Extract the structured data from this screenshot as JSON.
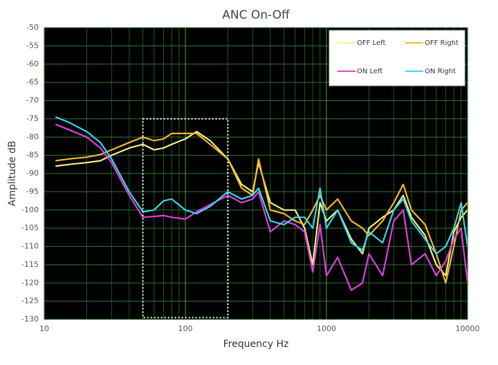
{
  "chart_data": {
    "type": "line",
    "title": "ANC On-Off",
    "x_label": "Frequency Hz",
    "y_label": "Amplitude dB",
    "x": [
      12,
      15,
      20,
      25,
      30,
      40,
      50,
      60,
      70,
      80,
      100,
      120,
      150,
      200,
      250,
      300,
      330,
      400,
      500,
      600,
      700,
      800,
      900,
      1000,
      1200,
      1500,
      1800,
      2000,
      2500,
      3000,
      3500,
      4000,
      5000,
      6000,
      7000,
      8000,
      9000,
      10000
    ],
    "series": [
      {
        "name": "OFF Left",
        "color": "#f5f08a",
        "values": [
          -88,
          -87.5,
          -87,
          -86.5,
          -85,
          -83,
          -82,
          -83.5,
          -83,
          -82,
          -80.5,
          -78.5,
          -81,
          -86,
          -93,
          -95,
          -87,
          -98,
          -100,
          -100,
          -105,
          -115,
          -98,
          -103,
          -100,
          -108,
          -112,
          -105,
          -102,
          -100,
          -96,
          -102,
          -107,
          -115,
          -118,
          -106,
          -102,
          -100
        ]
      },
      {
        "name": "OFF Right",
        "color": "#f5b82e",
        "values": [
          -86.5,
          -86,
          -85.5,
          -84.8,
          -83.5,
          -81.5,
          -80,
          -81,
          -80.5,
          -79,
          -79,
          -79,
          -82,
          -86,
          -94,
          -96,
          -86,
          -100,
          -101,
          -103,
          -104,
          -100,
          -96,
          -100,
          -97,
          -103,
          -105,
          -107,
          -103,
          -98,
          -93,
          -100,
          -104,
          -112,
          -120,
          -110,
          -100,
          -98
        ]
      },
      {
        "name": "ON Left",
        "color": "#e040e0",
        "values": [
          -76.5,
          -78,
          -80,
          -83,
          -87,
          -96,
          -102,
          -101.8,
          -101.5,
          -102,
          -102.5,
          -100.5,
          -98.5,
          -96,
          -98,
          -97,
          -95,
          -106,
          -103,
          -104,
          -106,
          -117,
          -104,
          -118,
          -113,
          -122,
          -120,
          -112,
          -118,
          -103,
          -100,
          -115,
          -112,
          -118,
          -114,
          -108,
          -105,
          -120
        ]
      },
      {
        "name": "ON Right",
        "color": "#3ad6f0",
        "values": [
          -74.5,
          -76,
          -78.5,
          -81.5,
          -86,
          -95,
          -100.5,
          -100,
          -97.5,
          -97,
          -100,
          -101,
          -99,
          -95,
          -97,
          -96,
          -94,
          -103,
          -104,
          -102,
          -102,
          -105,
          -94,
          -105,
          -100,
          -109,
          -111,
          -106,
          -109,
          -100,
          -97,
          -103,
          -108,
          -112,
          -110,
          -105,
          -98,
          -110
        ]
      }
    ],
    "xlim": [
      10,
      10000
    ],
    "xticks": [
      10,
      100,
      1000,
      10000
    ],
    "x_scale": "log",
    "ylim": [
      -130,
      -50
    ],
    "yticks": [
      -130,
      -125,
      -120,
      -115,
      -110,
      -105,
      -100,
      -95,
      -90,
      -85,
      -80,
      -75,
      -70,
      -65,
      -60,
      -55,
      -50
    ],
    "grid": true,
    "minor_grid": true,
    "legend": "upper right",
    "highlight": {
      "x": [
        50,
        200
      ],
      "y": [
        -129.5,
        -75
      ]
    }
  }
}
